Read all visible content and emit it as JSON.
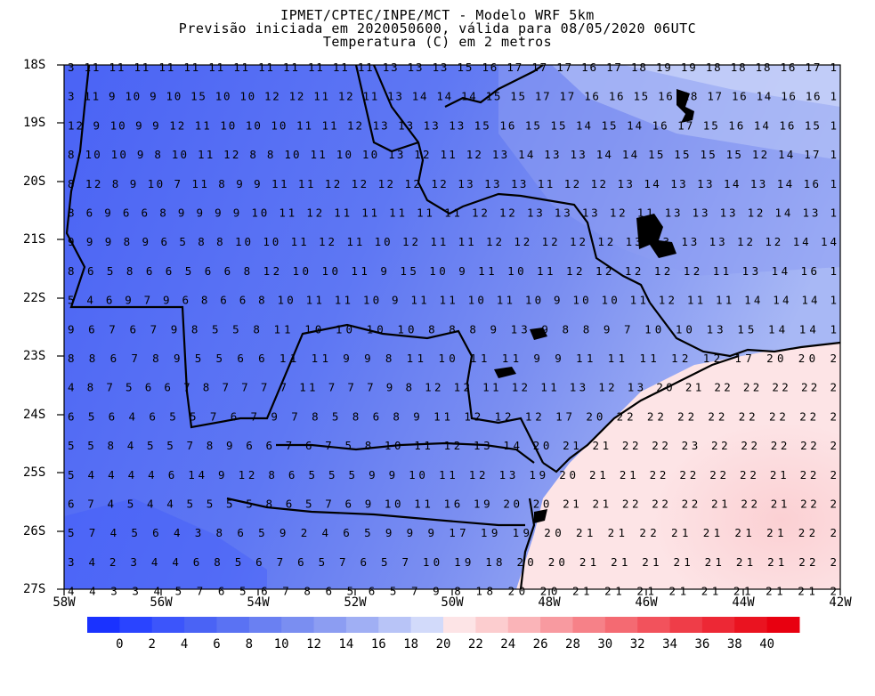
{
  "title": {
    "line1": "IPMET/CPTEC/INPE/MCT - Modelo WRF 5km",
    "line2": "Previsão iniciada em 2020050600, válida para 08/05/2020 06UTC",
    "line3": "Temperatura (C) em 2 metros"
  },
  "lat_labels": [
    "18S",
    "19S",
    "20S",
    "21S",
    "22S",
    "23S",
    "24S",
    "25S",
    "26S",
    "27S"
  ],
  "lon_labels": [
    "58W",
    "56W",
    "54W",
    "52W",
    "50W",
    "48W",
    "46W",
    "44W",
    "42W"
  ],
  "colorbar": {
    "labels": [
      "0",
      "2",
      "4",
      "6",
      "8",
      "10",
      "12",
      "14",
      "16",
      "18",
      "20",
      "22",
      "24",
      "26",
      "28",
      "30",
      "32",
      "34",
      "36",
      "38",
      "40"
    ],
    "colors": [
      "#1a32ff",
      "#2a44ff",
      "#3c55fb",
      "#4a63f5",
      "#5a72f3",
      "#6a80f2",
      "#7a8ef1",
      "#8c9df2",
      "#a0aff4",
      "#b8c4f7",
      "#d2dafa",
      "#fde4e6",
      "#fccdcf",
      "#fab4b8",
      "#f89aa0",
      "#f68188",
      "#f46a72",
      "#f2525c",
      "#ef3d48",
      "#ed2835",
      "#ea1320",
      "#e80010"
    ]
  },
  "color_legend": {
    "cold": "#3c55fb",
    "mid": "#b8c4f7",
    "warm": "#fde4e6"
  },
  "grid_values": [
    {
      "row": "18S",
      "values": "3 11 11 11 11 11 11 11 11 11 11 11 11 13 13 13 15 16 17 17 17 16 17 18 19 19 18 18 18 16 17 1"
    },
    {
      "row": "18.5S",
      "values": "3 11 9 10 9 10 15 10 10 12 12 11 12 11 13 14 14 14 15 15 17 17 16 16 15 16 18 17 16 14 16 16 1"
    },
    {
      "row": "19S",
      "values": "12 9 10 9 9 12 11 10 10 10 11 11 12 13 13 13 13 15 16 15 15 14 15 14 16 17 15 16 14 16 15 1"
    },
    {
      "row": "19.5S",
      "values": "8 10 10 9 8 10 11 12 8 8 10 11 10 10 13 12 11 12 13 14 13 13 14 14 15 15 15 15 12 14 17 1"
    },
    {
      "row": "20S",
      "values": "8 12 8 9 10 7 11 8 9 9 11 11 12 12 12 12 12 13 13 13 11 12 12 13 14 13 13 14 13 14 16 1"
    },
    {
      "row": "20.5S",
      "values": "8 6 9 6 6 8 9 9 9 9 10 11 12 11 11 11 11 11 12 12 13 13 13 12 11 13 13 13 12 14 13 1"
    },
    {
      "row": "21S",
      "values": "9 9 9 8 9 6 5 8 8 10 10 11 12 11 10 12 11 11 12 12 12 12 12 13 13 13 13 12 12 14 14"
    },
    {
      "row": "21.5S",
      "values": "8 6 5 8 6 6 5 6 6 8 12 10 10 11 9 15 10 9 11 10 11 12 12 12 12 12 11 13 14 16 1"
    },
    {
      "row": "22S",
      "values": "5 4 6 9 7 9 6 8 6 6 8 10 11 11 10 9 11 11 10 11 10 9 10 10 11 12 11 11 14 14 14 1"
    },
    {
      "row": "22.5S",
      "values": "9 6 7 6 7 9 8 5 5 8 11 10 10 10 10 8 8 8 9 13 9 8 8 9 7 10 10 13 15 14 14 1"
    },
    {
      "row": "23S",
      "values": "8 8 6 7 8 9 5 5 6 6 11 11 9 9 8 11 10 11 11 9 9 11 11 11 12 12 17 20 20 2"
    },
    {
      "row": "23.5S",
      "values": "4 8 7 5 6 6 7 8 7 7 7 7 11 7 7 7 9 8 12 12 11 12 11 13 12 13 20 21 22 22 22 22 2"
    },
    {
      "row": "24S",
      "values": "6 5 6 4 6 5 5 7 6 7 9 7 8 5 8 6 8 9 11 12 12 12 17 20 22 22 22 22 22 22 22 2"
    },
    {
      "row": "24.5S",
      "values": "5 5 8 4 5 5 7 8 9 6 6 7 6 7 5 8 10 11 12 13 14 20 21 21 22 22 23 22 22 22 22 2"
    },
    {
      "row": "25S",
      "values": "5 4 4 4 4 6 14 9 12 8 6 5 5 5 9 9 10 11 12 13 19 20 21 21 22 22 22 22 21 22 2"
    },
    {
      "row": "25.5S",
      "values": "6 7 4 5 4 4 5 5 5 5 8 6 5 7 6 9 10 11 16 19 20 20 21 21 22 22 22 21 22 21 22 2"
    },
    {
      "row": "26S",
      "values": "5 7 4 5 6 4 3 8 6 5 9 2 4 6 5 9 9 9 17 19 19 20 21 21 22 21 21 21 21 22 2"
    },
    {
      "row": "26.5S",
      "values": "3 4 2 3 4 4 6 8 5 6 7 6 5 7 6 5 7 10 19 18 20 20 21 21 21 21 21 21 21 22 2"
    },
    {
      "row": "27S",
      "values": "4 4 3 3 4 5 7 6 5 6 7 8 6 5 6 5 7 9 8 18 20 20 21 21 21 21 21 21 21 21 2"
    }
  ],
  "legend_ticks": "0 2 4 6 8 10 12 14 16 18 20 22 24 26 28 30 32 34 36 38 40"
}
